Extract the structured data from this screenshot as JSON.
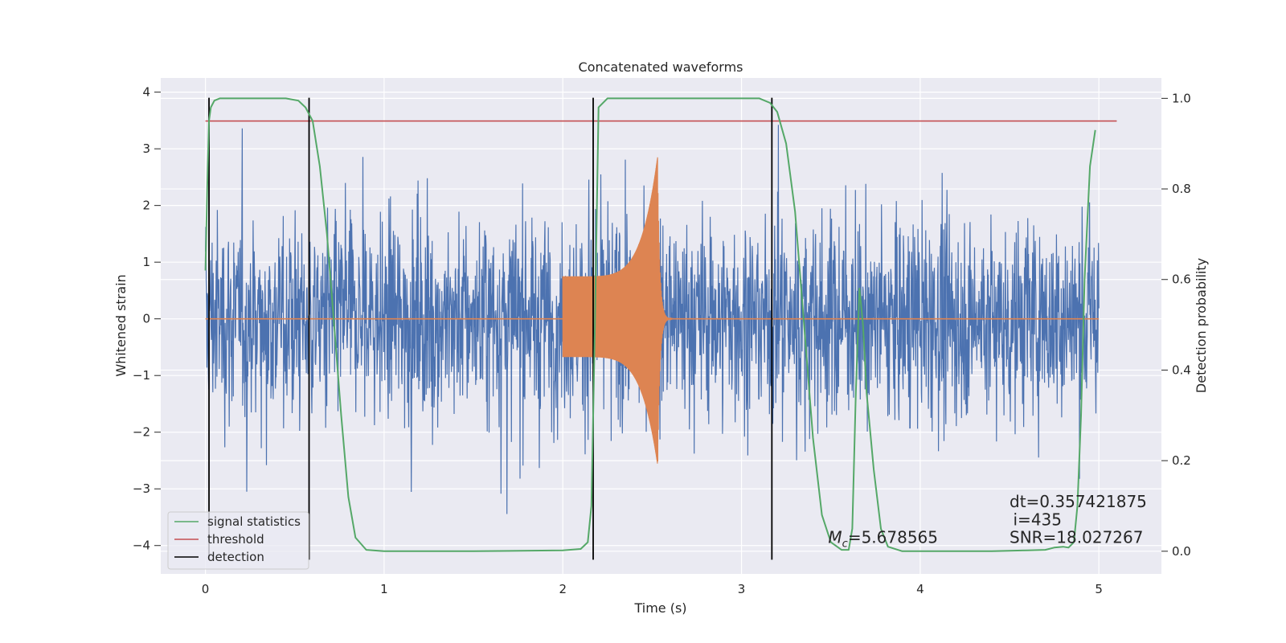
{
  "chart_data": {
    "type": "line",
    "title": "Concatenated waveforms",
    "xlabel": "Time (s)",
    "ylabel_left": "Whitened strain",
    "ylabel_right": "Detection probability",
    "xlim": [
      -0.25,
      5.35
    ],
    "ylim_left": [
      -4.5,
      4.25
    ],
    "ylim_right": [
      -0.05,
      1.045
    ],
    "grid": true,
    "legend_placement": "lower-left",
    "x_ticks": [
      0,
      1,
      2,
      3,
      4,
      5
    ],
    "x_tick_labels": [
      "0",
      "1",
      "2",
      "3",
      "4",
      "5"
    ],
    "y_left_ticks": [
      -4,
      -3,
      -2,
      -1,
      0,
      1,
      2,
      3,
      4
    ],
    "y_left_tick_labels": [
      "−4",
      "−3",
      "−2",
      "−1",
      "0",
      "1",
      "2",
      "3",
      "4"
    ],
    "y_right_ticks": [
      0.0,
      0.2,
      0.4,
      0.6,
      0.8,
      1.0
    ],
    "y_right_tick_labels": [
      "0.0",
      "0.2",
      "0.4",
      "0.6",
      "0.8",
      "1.0"
    ],
    "series": [
      {
        "name": "",
        "axis": "left",
        "color": "#4c72b0",
        "x_range": [
          0,
          5
        ],
        "typical_amplitude": 1.3,
        "max_abs": 3.9
      },
      {
        "name": "",
        "axis": "left",
        "color": "#dd8452",
        "segments": [
          {
            "x_range": [
              0,
              2
            ],
            "y": 0
          },
          {
            "x_range": [
              2.0,
              2.53
            ],
            "amp_start": 0.75,
            "amp_peak": 2.85,
            "peak_x": 2.53
          },
          {
            "x_range": [
              2.53,
              5
            ],
            "y": 0
          }
        ]
      },
      {
        "name": "signal statistics",
        "axis": "right",
        "color": "#55a868",
        "x": [
          0.0,
          0.01,
          0.02,
          0.03,
          0.05,
          0.08,
          0.15,
          0.3,
          0.45,
          0.52,
          0.56,
          0.6,
          0.64,
          0.68,
          0.72,
          0.76,
          0.8,
          0.84,
          0.9,
          1.0,
          1.5,
          2.0,
          2.1,
          2.14,
          2.16,
          2.18,
          2.2,
          2.25,
          2.5,
          3.0,
          3.1,
          3.16,
          3.2,
          3.25,
          3.3,
          3.35,
          3.4,
          3.45,
          3.5,
          3.56,
          3.6,
          3.62,
          3.64,
          3.66,
          3.68,
          3.7,
          3.74,
          3.78,
          3.82,
          3.9,
          4.0,
          4.2,
          4.4,
          4.6,
          4.7,
          4.75,
          4.8,
          4.83,
          4.86,
          4.88,
          4.9,
          4.92,
          4.95,
          4.98
        ],
        "y": [
          0.62,
          0.8,
          0.95,
          0.98,
          0.995,
          1.0,
          1.0,
          1.0,
          1.0,
          0.995,
          0.98,
          0.95,
          0.85,
          0.7,
          0.5,
          0.3,
          0.12,
          0.03,
          0.003,
          0.0,
          0.0,
          0.002,
          0.005,
          0.02,
          0.1,
          0.5,
          0.98,
          1.0,
          1.0,
          1.0,
          1.0,
          0.99,
          0.97,
          0.9,
          0.75,
          0.5,
          0.25,
          0.08,
          0.02,
          0.003,
          0.003,
          0.05,
          0.35,
          0.58,
          0.5,
          0.35,
          0.18,
          0.05,
          0.01,
          0.0,
          0.0,
          0.0,
          0.0,
          0.002,
          0.003,
          0.008,
          0.01,
          0.008,
          0.02,
          0.1,
          0.3,
          0.6,
          0.85,
          0.93
        ]
      },
      {
        "name": "threshold",
        "axis": "right",
        "color": "#c44e52",
        "x": [
          0.0,
          5.1
        ],
        "y": [
          0.95,
          0.95
        ]
      },
      {
        "name": "detection",
        "axis": "left",
        "color": "#000000",
        "vlines_x": [
          0.02,
          0.58,
          2.17,
          3.17
        ],
        "ymin": -4.25,
        "ymax": 3.9
      }
    ],
    "annotations": [
      {
        "text": "dt=0.357421875",
        "x": 4.5,
        "y_right": 0.097,
        "anchor": "start"
      },
      {
        "text": "i=435",
        "x": 4.52,
        "y_right": 0.057,
        "anchor": "start"
      },
      {
        "text": "SNR=18.027267",
        "x": 4.5,
        "y_right": 0.018,
        "anchor": "start"
      },
      {
        "text": "=5.678565",
        "x": 3.62,
        "y_right": 0.018,
        "anchor": "start"
      }
    ],
    "mc_label": "M",
    "mc_sub": "c"
  }
}
